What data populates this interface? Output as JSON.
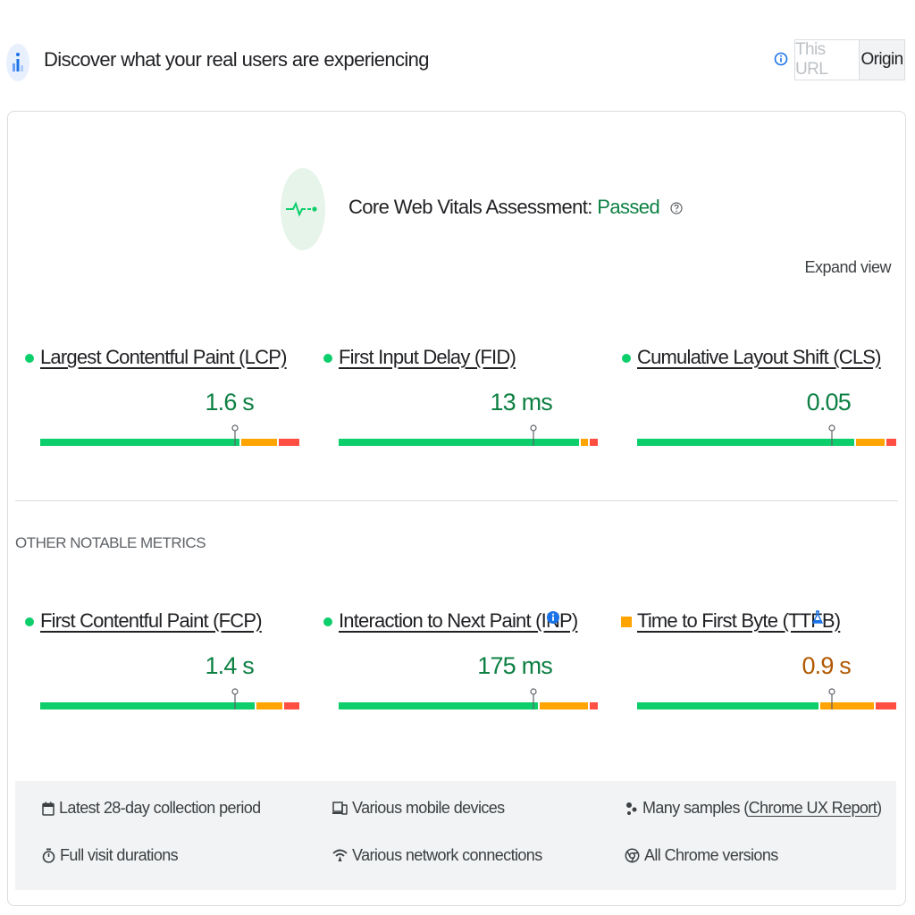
{
  "header": {
    "title": "Discover what your real users are experiencing",
    "toggle": {
      "this_url": "This URL",
      "origin": "Origin"
    }
  },
  "assessment": {
    "label": "Core Web Vitals Assessment:",
    "status": "Passed",
    "expand_label": "Expand view"
  },
  "core_metrics": [
    {
      "name": "Largest Contentful Paint (LCP)",
      "value": "1.6 s",
      "rating": "good",
      "marker": 0.75,
      "dist": [
        0.78,
        0.14,
        0.08
      ]
    },
    {
      "name": "First Input Delay (FID)",
      "value": "13 ms",
      "rating": "good",
      "marker": 0.75,
      "dist": [
        0.94,
        0.03,
        0.03
      ]
    },
    {
      "name": "Cumulative Layout Shift (CLS)",
      "value": "0.05",
      "rating": "good",
      "marker": 0.75,
      "dist": [
        0.85,
        0.11,
        0.04
      ]
    }
  ],
  "other_section_label": "OTHER NOTABLE METRICS",
  "other_metrics": [
    {
      "name": "First Contentful Paint (FCP)",
      "value": "1.4 s",
      "rating": "good",
      "marker": 0.75,
      "dist": [
        0.84,
        0.1,
        0.06
      ]
    },
    {
      "name": "Interaction to Next Paint (INP)",
      "value": "175 ms",
      "rating": "good",
      "marker": 0.75,
      "dist": [
        0.78,
        0.19,
        0.03
      ]
    },
    {
      "name": "Time to First Byte (TTFB)",
      "value": "0.9 s",
      "rating": "needs-improvement",
      "marker": 0.75,
      "dist": [
        0.71,
        0.21,
        0.08
      ]
    }
  ],
  "footer": {
    "collection_period": "Latest 28-day collection period",
    "devices": "Various mobile devices",
    "samples_prefix": "Many samples",
    "samples_link": "Chrome UX Report",
    "durations": "Full visit durations",
    "network": "Various network connections",
    "chrome_versions": "All Chrome versions"
  },
  "colors": {
    "good": "#0cce6b",
    "average": "#ffa400",
    "poor": "#ff4e42",
    "passed_text": "#0d8043",
    "info_blue": "#1a73e8"
  },
  "icons": {
    "header": "crux-data-icon",
    "assessment": "pulse-icon",
    "info": "info-icon",
    "help": "help-icon",
    "calendar": "calendar-icon",
    "devices": "devices-icon",
    "samples": "samples-icon",
    "stopwatch": "stopwatch-icon",
    "network": "network-icon",
    "chrome": "chrome-icon",
    "experimental": "flask-icon"
  }
}
